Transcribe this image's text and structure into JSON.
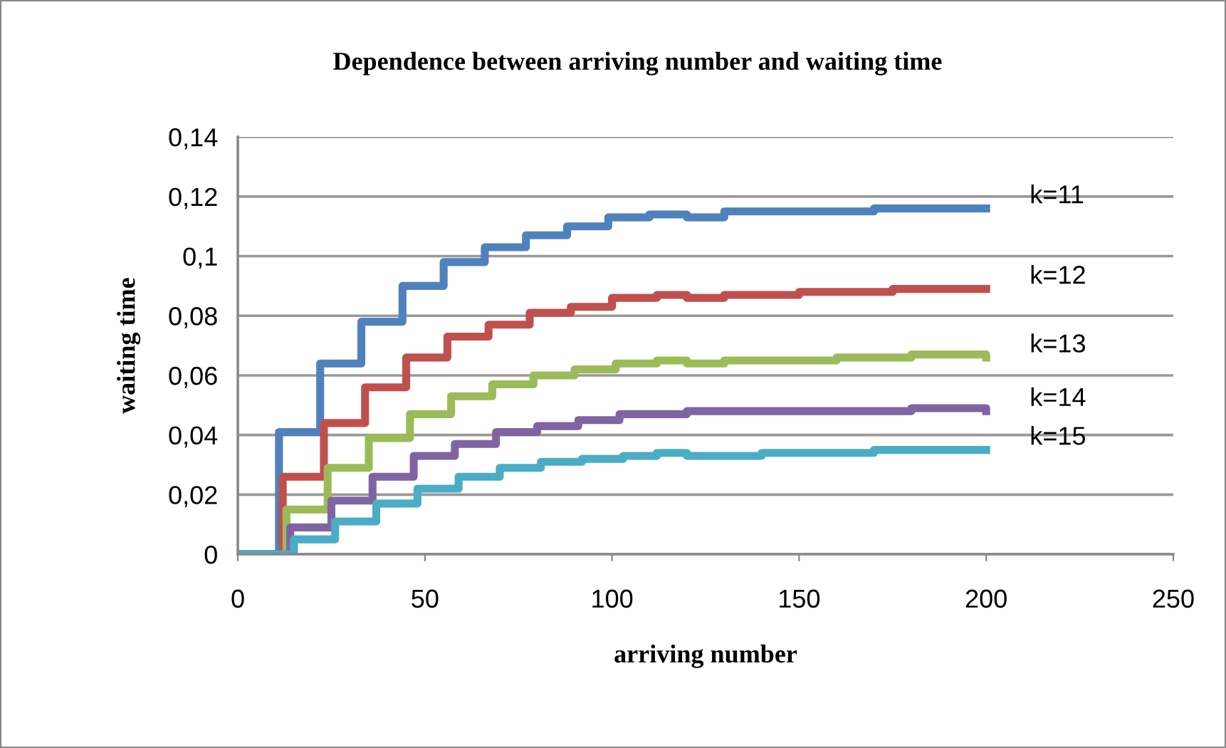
{
  "chart_data": {
    "type": "step",
    "title": "Dependence between arriving number and waiting time",
    "xlabel": "arriving number",
    "ylabel": "waiting time",
    "xlim": [
      0,
      250
    ],
    "xticks": [
      0,
      50,
      100,
      150,
      200,
      250
    ],
    "ylim": [
      0,
      0.14
    ],
    "yticks": [
      {
        "value": 0,
        "label": "0"
      },
      {
        "value": 0.02,
        "label": "0,02"
      },
      {
        "value": 0.04,
        "label": "0,04"
      },
      {
        "value": 0.06,
        "label": "0,06"
      },
      {
        "value": 0.08,
        "label": "0,08"
      },
      {
        "value": 0.1,
        "label": "0,1"
      },
      {
        "value": 0.12,
        "label": "0,12"
      },
      {
        "value": 0.14,
        "label": "0,14"
      }
    ],
    "grid": "y",
    "legend": false,
    "series": [
      {
        "name": "k=11",
        "color": "#4f81bd",
        "x": [
          0,
          11,
          22,
          33,
          44,
          55,
          66,
          77,
          88,
          99,
          110,
          112,
          120,
          130,
          150,
          170,
          200
        ],
        "values": [
          0,
          0.041,
          0.064,
          0.078,
          0.09,
          0.098,
          0.103,
          0.107,
          0.11,
          0.113,
          0.114,
          0.114,
          0.113,
          0.115,
          0.115,
          0.116,
          0.116
        ]
      },
      {
        "name": "k=12",
        "color": "#c0504d",
        "x": [
          0,
          12,
          23,
          34,
          45,
          56,
          67,
          78,
          89,
          100,
          112,
          120,
          130,
          150,
          175,
          200
        ],
        "values": [
          0,
          0.026,
          0.044,
          0.056,
          0.066,
          0.073,
          0.077,
          0.081,
          0.083,
          0.086,
          0.087,
          0.086,
          0.087,
          0.088,
          0.089,
          0.089
        ]
      },
      {
        "name": "k=13",
        "color": "#9bbb59",
        "x": [
          0,
          13,
          24,
          35,
          46,
          57,
          68,
          79,
          90,
          101,
          112,
          120,
          130,
          160,
          180,
          200
        ],
        "values": [
          0,
          0.015,
          0.029,
          0.039,
          0.047,
          0.053,
          0.057,
          0.06,
          0.062,
          0.064,
          0.065,
          0.064,
          0.065,
          0.066,
          0.067,
          0.066
        ]
      },
      {
        "name": "k=14",
        "color": "#8064a2",
        "x": [
          0,
          14,
          25,
          36,
          47,
          58,
          69,
          80,
          91,
          102,
          120,
          150,
          180,
          200
        ],
        "values": [
          0,
          0.009,
          0.018,
          0.026,
          0.033,
          0.037,
          0.041,
          0.043,
          0.045,
          0.047,
          0.048,
          0.048,
          0.049,
          0.048
        ]
      },
      {
        "name": "k=15",
        "color": "#4bacc6",
        "x": [
          0,
          15,
          26,
          37,
          48,
          59,
          70,
          81,
          92,
          103,
          112,
          120,
          140,
          170,
          200
        ],
        "values": [
          0,
          0.005,
          0.011,
          0.017,
          0.022,
          0.026,
          0.029,
          0.031,
          0.032,
          0.033,
          0.034,
          0.033,
          0.034,
          0.035,
          0.035
        ]
      }
    ]
  }
}
